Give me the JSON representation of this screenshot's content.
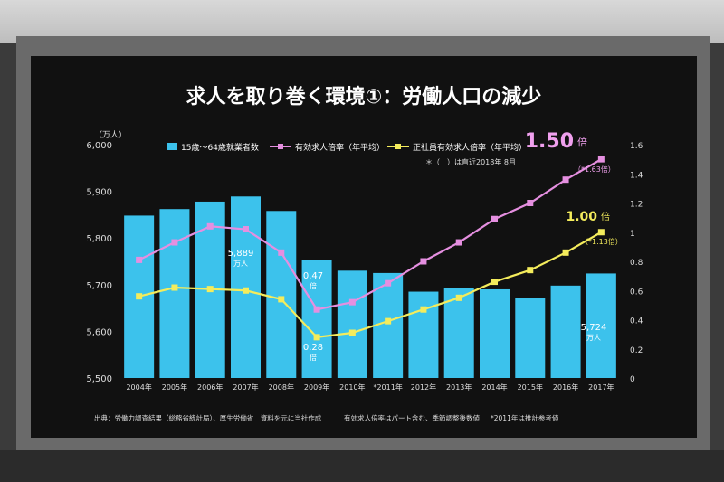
{
  "slide": {
    "title": "求人を取り巻く環境①：労働人口の減少"
  },
  "chart_data": {
    "type": "bar",
    "title": "求人を取り巻く環境①：労働人口の減少",
    "categories": [
      "2004年",
      "2005年",
      "2006年",
      "2007年",
      "2008年",
      "2009年",
      "2010年",
      "*2011年",
      "2012年",
      "2013年",
      "2014年",
      "2015年",
      "2016年",
      "2017年"
    ],
    "left_axis": {
      "unit": "（万人）",
      "range": [
        5500,
        6000
      ],
      "ticks": [
        "5,500",
        "5,600",
        "5,700",
        "5,800",
        "5,900",
        "6,000"
      ]
    },
    "right_axis": {
      "range": [
        0,
        1.6
      ],
      "ticks": [
        "0",
        "0.2",
        "0.4",
        "0.6",
        "0.8",
        "1",
        "1.2",
        "1.4",
        "1.6"
      ]
    },
    "series": [
      {
        "name": "15歳～64歳就業者数",
        "type": "bar",
        "axis": "left",
        "color": "#3cc2ec",
        "values": [
          5848,
          5862,
          5878,
          5889,
          5858,
          5752,
          5730,
          5725,
          5685,
          5692,
          5690,
          5672,
          5698,
          5724
        ]
      },
      {
        "name": "有効求人倍率（年平均）",
        "type": "line",
        "axis": "right",
        "color": "#e58fe0",
        "values": [
          0.81,
          0.93,
          1.04,
          1.02,
          0.86,
          0.47,
          0.52,
          0.65,
          0.8,
          0.93,
          1.09,
          1.2,
          1.36,
          1.5
        ]
      },
      {
        "name": "正社員有効求人倍率（年平均）",
        "type": "line",
        "axis": "right",
        "color": "#f4ec5c",
        "values": [
          0.56,
          0.62,
          0.61,
          0.6,
          0.54,
          0.28,
          0.31,
          0.39,
          0.47,
          0.55,
          0.66,
          0.74,
          0.86,
          1.0
        ]
      }
    ],
    "legend_placement": "top",
    "grid": false,
    "note_top": "＊（　）は直近2018年 8月",
    "annotations": {
      "bar_2007": {
        "value": "5,889",
        "unit": "万人"
      },
      "bar_2017": {
        "value": "5,724",
        "unit": "万人"
      },
      "min_2009_pink": {
        "value": "0.47",
        "unit": "倍"
      },
      "min_2009_yellow": {
        "value": "0.28",
        "unit": "倍"
      },
      "end_pink_value": "1.50",
      "end_pink_unit": "倍",
      "end_pink_recent": "（*1.63倍）",
      "end_yellow_value": "1.00",
      "end_yellow_unit": "倍",
      "end_yellow_recent": "（*1.13倍）"
    },
    "footer": {
      "source": "出典：労働力調査結果（総務省統計局）、厚生労働省　資料を元に当社作成",
      "note1": "有効求人倍率はパート含む、季節調整後数値",
      "note2": "*2011年は推計参考値"
    }
  },
  "colors": {
    "slide_bg": "#111111",
    "title": "#ffffff",
    "axis_text": "#dddddd",
    "pink_highlight": "#f0a0ee",
    "yellow_highlight": "#f4ec5c"
  }
}
